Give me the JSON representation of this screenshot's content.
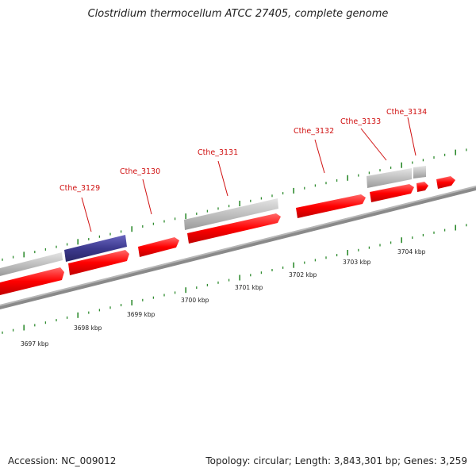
{
  "title": "Clostridium thermocellum ATCC 27405, complete genome",
  "accession": "Accession: NC_009012",
  "topology": "Topology: circular; Length: 3,843,301 bp; Genes: 3,259",
  "colors": {
    "cds": "#ff0000",
    "highlight": "#3d3a8f",
    "other": "#c0c0c0",
    "backbone": "#8a8a8a",
    "tick": "#2e8b2e",
    "label": "#d01010"
  },
  "genes": [
    {
      "name": "Cthe_3129"
    },
    {
      "name": "Cthe_3130"
    },
    {
      "name": "Cthe_3131"
    },
    {
      "name": "Cthe_3132"
    },
    {
      "name": "Cthe_3133"
    },
    {
      "name": "Cthe_3134"
    }
  ],
  "kbp_labels": [
    "3697 kbp",
    "3698 kbp",
    "3699 kbp",
    "3700 kbp",
    "3701 kbp",
    "3702 kbp",
    "3703 kbp",
    "3704 kbp"
  ]
}
